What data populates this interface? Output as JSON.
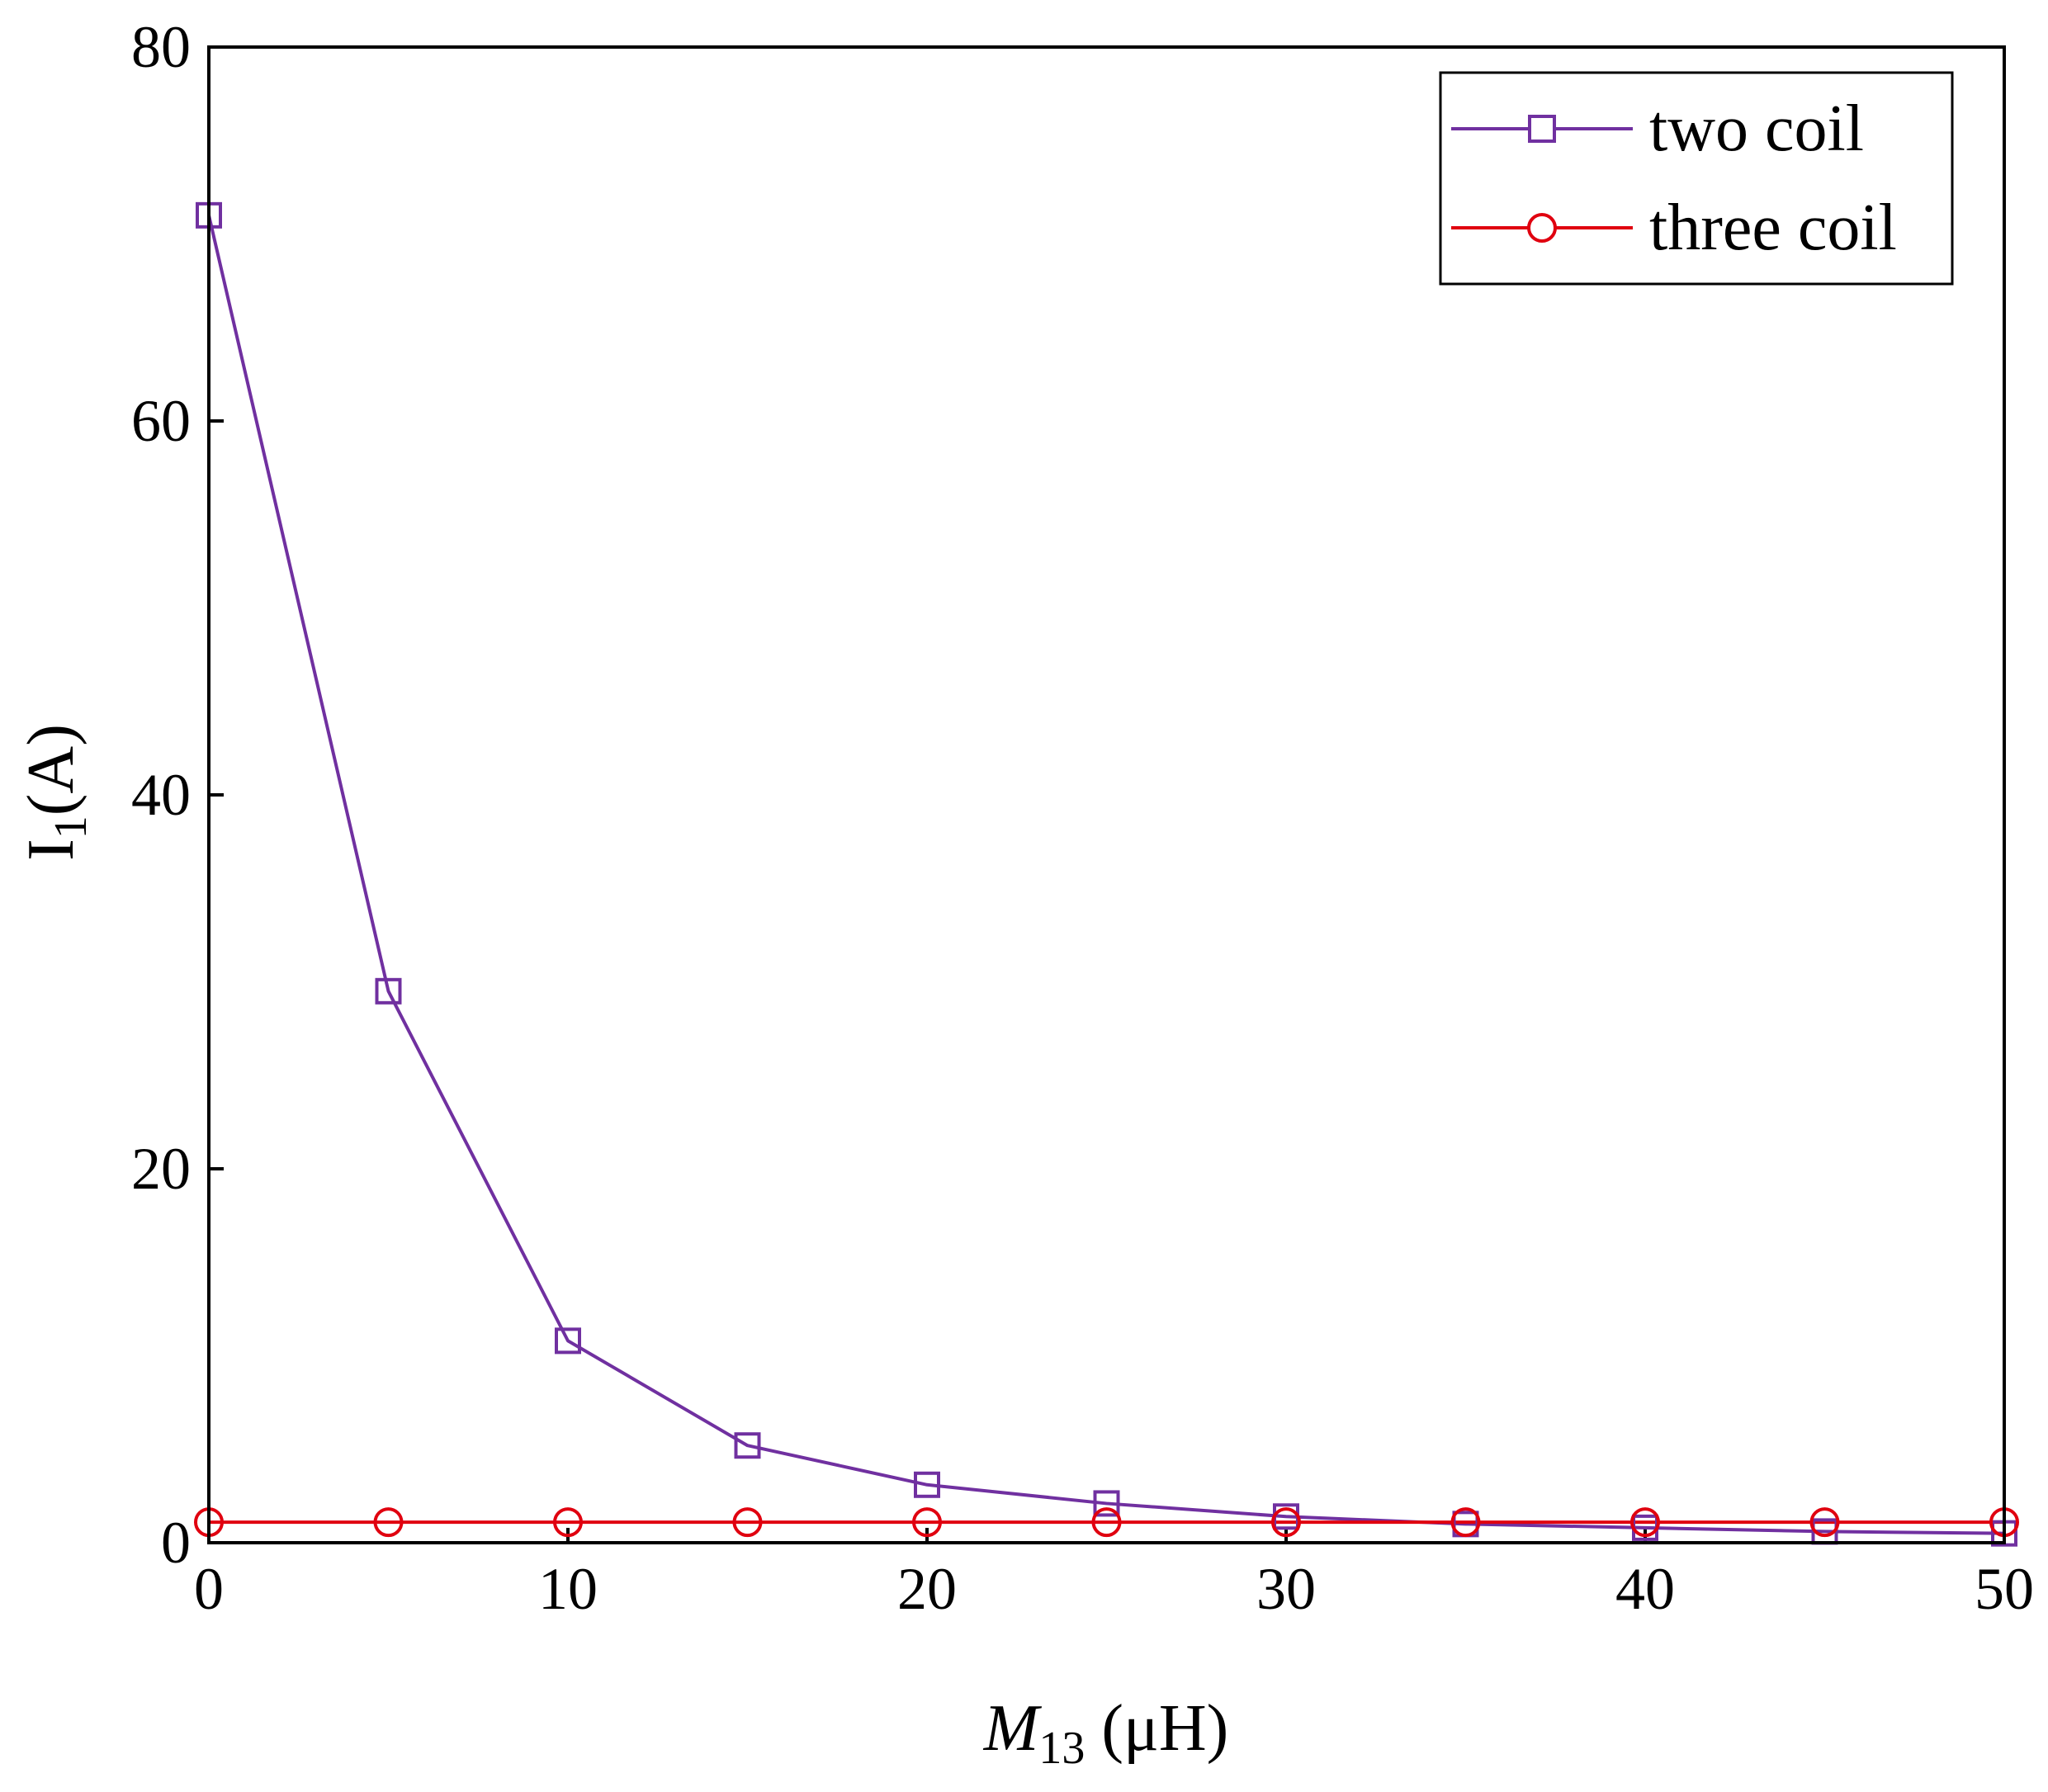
{
  "chart_data": {
    "type": "line",
    "title": "",
    "xlabel_main": "M",
    "xlabel_sub": "13",
    "xlabel_unit": " (μH)",
    "ylabel_main": "I",
    "ylabel_sub": "1",
    "ylabel_unit": "(A)",
    "xlim": [
      0,
      50
    ],
    "ylim": [
      0,
      80
    ],
    "xticks": [
      0,
      10,
      20,
      30,
      40,
      50
    ],
    "yticks": [
      0,
      20,
      40,
      60,
      80
    ],
    "grid": false,
    "legend_position": "top-right",
    "x": [
      0,
      5,
      10,
      15,
      20,
      25,
      30,
      35,
      40,
      45,
      50
    ],
    "series": [
      {
        "name": "two coil",
        "color": "#7030A0",
        "marker": "square",
        "values": [
          71.0,
          29.5,
          10.8,
          5.2,
          3.1,
          2.1,
          1.4,
          1.0,
          0.8,
          0.6,
          0.5
        ]
      },
      {
        "name": "three coil",
        "color": "#E0000F",
        "marker": "circle",
        "values": [
          1.1,
          1.1,
          1.1,
          1.1,
          1.1,
          1.1,
          1.1,
          1.1,
          1.1,
          1.1,
          1.1
        ]
      }
    ]
  }
}
